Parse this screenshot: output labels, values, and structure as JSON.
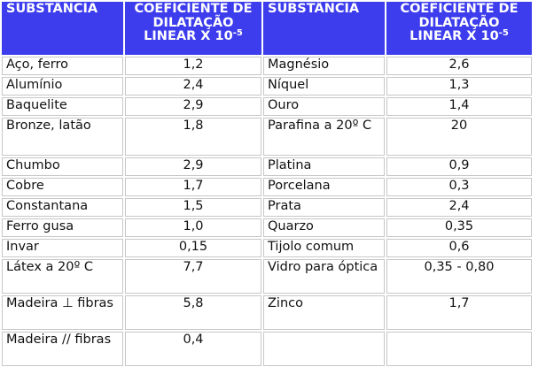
{
  "header": {
    "substance": "SUBSTÂNCIA",
    "coef_line1": "COEFICIENTE DE",
    "coef_line2": "DILATAÇÃO",
    "coef_line3": "LINEAR X 10",
    "coef_exp": "-5"
  },
  "rows": [
    {
      "left_name": "Aço, ferro",
      "left_value": "1,2",
      "right_name": "Magnésio",
      "right_value": "2,6"
    },
    {
      "left_name": "Alumínio",
      "left_value": "2,4",
      "right_name": "Níquel",
      "right_value": "1,3"
    },
    {
      "left_name": "Baquelite",
      "left_value": "2,9",
      "right_name": "Ouro",
      "right_value": "1,4"
    },
    {
      "left_name": "Bronze, latão",
      "left_value": "1,8",
      "right_name": "Parafina a 20º C",
      "right_value": "20"
    },
    {
      "left_name": "Chumbo",
      "left_value": "2,9",
      "right_name": "Platina",
      "right_value": "0,9"
    },
    {
      "left_name": "Cobre",
      "left_value": "1,7",
      "right_name": "Porcelana",
      "right_value": "0,3"
    },
    {
      "left_name": "Constantana",
      "left_value": "1,5",
      "right_name": "Prata",
      "right_value": "2,4"
    },
    {
      "left_name": "Ferro gusa",
      "left_value": "1,0",
      "right_name": "Quarzo",
      "right_value": "0,35"
    },
    {
      "left_name": "Invar",
      "left_value": "0,15",
      "right_name": "Tijolo comum",
      "right_value": "0,6"
    },
    {
      "left_name": "Látex a 20º C",
      "left_value": "7,7",
      "right_name": "Vidro para óptica",
      "right_value": "0,35 - 0,80"
    },
    {
      "left_name": "Madeira ⊥ fibras",
      "left_value": "5,8",
      "right_name": "Zinco",
      "right_value": "1,7"
    },
    {
      "left_name": "Madeira // fibras",
      "left_value": "0,4",
      "right_name": "",
      "right_value": ""
    }
  ]
}
